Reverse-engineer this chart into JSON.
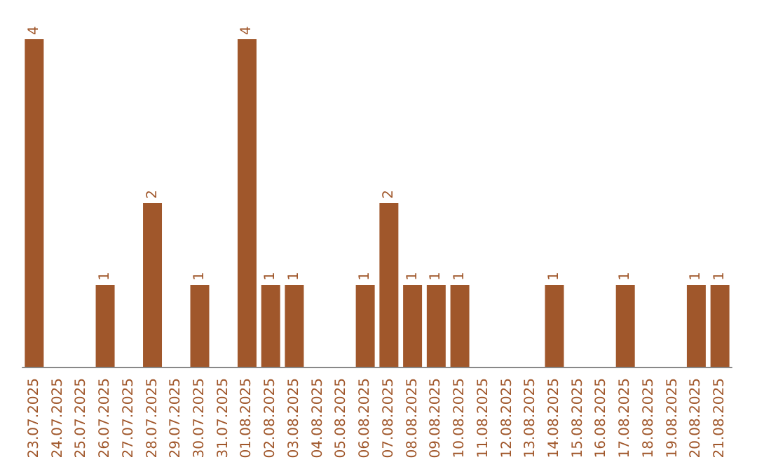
{
  "chart_data": {
    "type": "bar",
    "categories": [
      "23.07.2025",
      "24.07.2025",
      "25.07.2025",
      "26.07.2025",
      "27.07.2025",
      "28.07.2025",
      "29.07.2025",
      "30.07.2025",
      "31.07.2025",
      "01.08.2025",
      "02.08.2025",
      "03.08.2025",
      "04.08.2025",
      "05.08.2025",
      "06.08.2025",
      "07.08.2025",
      "08.08.2025",
      "09.08.2025",
      "10.08.2025",
      "11.08.2025",
      "12.08.2025",
      "13.08.2025",
      "14.08.2025",
      "15.08.2025",
      "16.08.2025",
      "17.08.2025",
      "18.08.2025",
      "19.08.2025",
      "20.08.2025",
      "21.08.2025"
    ],
    "values": [
      4,
      0,
      0,
      1,
      0,
      2,
      0,
      1,
      0,
      4,
      1,
      1,
      0,
      0,
      1,
      2,
      1,
      1,
      1,
      0,
      0,
      0,
      1,
      0,
      0,
      1,
      0,
      0,
      1,
      1
    ],
    "value_labels": [
      "4",
      null,
      null,
      "1",
      null,
      "2",
      null,
      "1",
      null,
      "4",
      "1",
      "1",
      null,
      null,
      "1",
      "2",
      "1",
      "1",
      "1",
      null,
      null,
      null,
      "1",
      null,
      null,
      "1",
      null,
      null,
      "1",
      "1"
    ],
    "color": "#a0572b",
    "tick_labels": "x",
    "ylim": [
      0,
      4
    ]
  }
}
